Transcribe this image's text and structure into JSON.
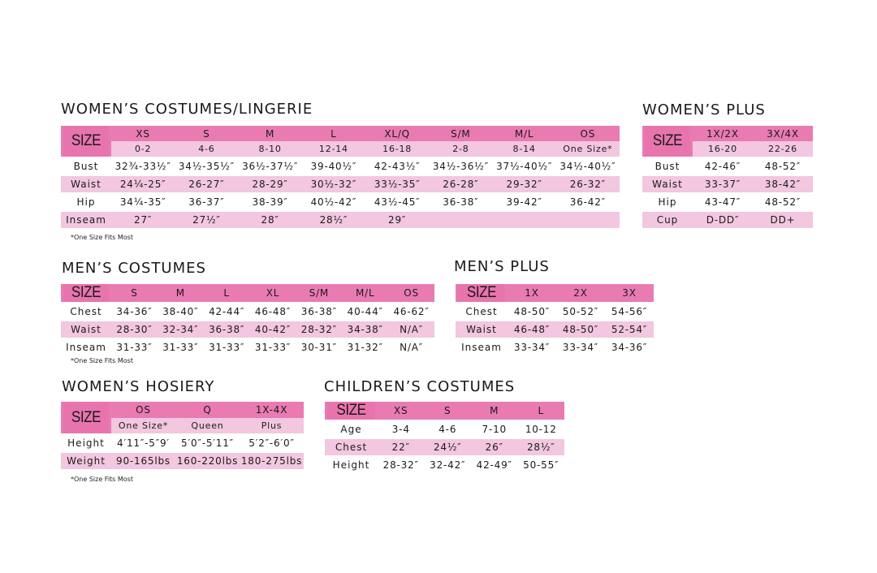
{
  "size_label": "SIZE",
  "colors": {
    "header_pink": "#e874ae",
    "light_pink": "#f2c7df",
    "text": "#1a1a1a"
  },
  "tables": {
    "womens_costumes": {
      "title": "WOMEN’S COSTUMES/LINGERIE",
      "sizes": [
        "XS",
        "S",
        "M",
        "L",
        "XL/Q",
        "S/M",
        "M/L",
        "OS"
      ],
      "sub_sizes": [
        "0-2",
        "4-6",
        "8-10",
        "12-14",
        "16-18",
        "2-8",
        "8-14",
        "One Size*"
      ],
      "rows": [
        {
          "label": "Bust",
          "values": [
            "32¾-33½″",
            "34½-35½″",
            "36½-37½″",
            "39-40½″",
            "42-43½″",
            "34½-36½″",
            "37½-40½″",
            "34½-40½″"
          ]
        },
        {
          "label": "Waist",
          "values": [
            "24¼-25″",
            "26-27″",
            "28-29″",
            "30½-32″",
            "33½-35″",
            "26-28″",
            "29-32″",
            "26-32″"
          ]
        },
        {
          "label": "Hip",
          "values": [
            "34¼-35″",
            "36-37″",
            "38-39″",
            "40½-42″",
            "43½-45″",
            "36-38″",
            "39-42″",
            "36-42″"
          ]
        },
        {
          "label": "Inseam",
          "values": [
            "27″",
            "27½″",
            "28″",
            "28½″",
            "29″",
            "",
            "",
            ""
          ]
        }
      ],
      "note": "*One Size Fits Most"
    },
    "womens_plus": {
      "title": "WOMEN’S PLUS",
      "sizes": [
        "1X/2X",
        "3X/4X"
      ],
      "sub_sizes": [
        "16-20",
        "22-26"
      ],
      "rows": [
        {
          "label": "Bust",
          "values": [
            "42-46″",
            "48-52″"
          ]
        },
        {
          "label": "Waist",
          "values": [
            "33-37″",
            "38-42″"
          ]
        },
        {
          "label": "Hip",
          "values": [
            "43-47″",
            "48-52″"
          ]
        },
        {
          "label": "Cup",
          "values": [
            "D-DD″",
            "DD+"
          ]
        }
      ]
    },
    "mens_costumes": {
      "title": "MEN’S COSTUMES",
      "sizes": [
        "S",
        "M",
        "L",
        "XL",
        "S/M",
        "M/L",
        "OS"
      ],
      "rows": [
        {
          "label": "Chest",
          "values": [
            "34-36″",
            "38-40″",
            "42-44″",
            "46-48″",
            "36-38″",
            "40-44″",
            "46-62″"
          ]
        },
        {
          "label": "Waist",
          "values": [
            "28-30″",
            "32-34″",
            "36-38″",
            "40-42″",
            "28-32″",
            "34-38″",
            "N/A″"
          ]
        },
        {
          "label": "Inseam",
          "values": [
            "31-33″",
            "31-33″",
            "31-33″",
            "31-33″",
            "30-31″",
            "31-32″",
            "N/A″"
          ]
        }
      ],
      "note": "*One Size Fits Most"
    },
    "mens_plus": {
      "title": "MEN’S PLUS",
      "sizes": [
        "1X",
        "2X",
        "3X"
      ],
      "rows": [
        {
          "label": "Chest",
          "values": [
            "48-50″",
            "50-52″",
            "54-56″"
          ]
        },
        {
          "label": "Waist",
          "values": [
            "46-48″",
            "48-50″",
            "52-54″"
          ]
        },
        {
          "label": "Inseam",
          "values": [
            "33-34″",
            "33-34″",
            "34-36″"
          ]
        }
      ]
    },
    "womens_hosiery": {
      "title": "WOMEN’S HOSIERY",
      "sizes": [
        "OS",
        "Q",
        "1X-4X"
      ],
      "sub_sizes": [
        "One Size*",
        "Queen",
        "Plus"
      ],
      "rows": [
        {
          "label": "Height",
          "values": [
            "4′11″-5″9′",
            "5′0″-5′11″",
            "5′2″-6′0″"
          ]
        },
        {
          "label": "Weight",
          "values": [
            "90-165lbs",
            "160-220lbs",
            "180-275lbs"
          ]
        }
      ],
      "note": "*One Size Fits Most"
    },
    "childrens_costumes": {
      "title": "CHILDREN’S COSTUMES",
      "sizes": [
        "XS",
        "S",
        "M",
        "L"
      ],
      "rows": [
        {
          "label": "Age",
          "values": [
            "3-4",
            "4-6",
            "7-10",
            "10-12"
          ]
        },
        {
          "label": "Chest",
          "values": [
            "22″",
            "24½″",
            "26″",
            "28½″"
          ]
        },
        {
          "label": "Height",
          "values": [
            "28-32″",
            "32-42″",
            "42-49″",
            "50-55″"
          ]
        }
      ]
    }
  }
}
